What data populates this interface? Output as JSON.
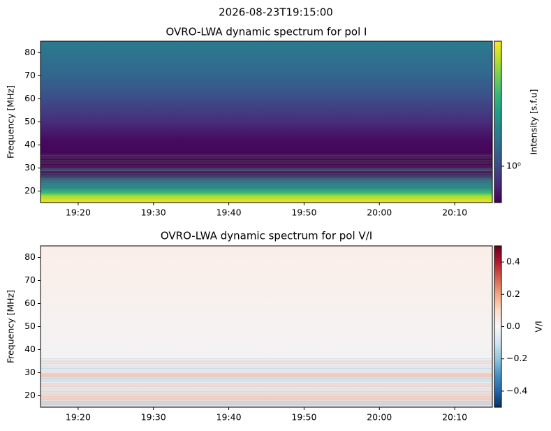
{
  "title": "2026-08-23T19:15:00",
  "chart_data": [
    {
      "type": "heatmap",
      "title": "OVRO-LWA dynamic spectrum for pol I",
      "ylabel": "Frequency [MHz]",
      "xlim": [
        "19:15",
        "20:15"
      ],
      "xticks": [
        "19:20",
        "19:30",
        "19:40",
        "19:50",
        "20:00",
        "20:10"
      ],
      "ylim": [
        15,
        85
      ],
      "yticks": [
        20,
        30,
        40,
        50,
        60,
        70,
        80
      ],
      "colorbar": {
        "label": "Intensity [s.f.u]",
        "colormap": "viridis",
        "scale": "log",
        "clim": [
          0.6,
          5.8
        ],
        "ticks": [
          {
            "value": 1,
            "label": "10⁰"
          }
        ]
      }
    },
    {
      "type": "heatmap",
      "title": "OVRO-LWA dynamic spectrum for pol V/I",
      "ylabel": "Frequency [MHz]",
      "xlim": [
        "19:15",
        "20:15"
      ],
      "xticks": [
        "19:20",
        "19:30",
        "19:40",
        "19:50",
        "20:00",
        "20:10"
      ],
      "ylim": [
        15,
        85
      ],
      "yticks": [
        20,
        30,
        40,
        50,
        60,
        70,
        80
      ],
      "colorbar": {
        "label": "V/I",
        "colormap": "RdBu_r",
        "scale": "linear",
        "clim": [
          -0.5,
          0.5
        ],
        "ticks": [
          {
            "value": -0.4,
            "label": "−0.4"
          },
          {
            "value": -0.2,
            "label": "−0.2"
          },
          {
            "value": 0,
            "label": "0.0"
          },
          0.2,
          0.4
        ]
      }
    }
  ]
}
